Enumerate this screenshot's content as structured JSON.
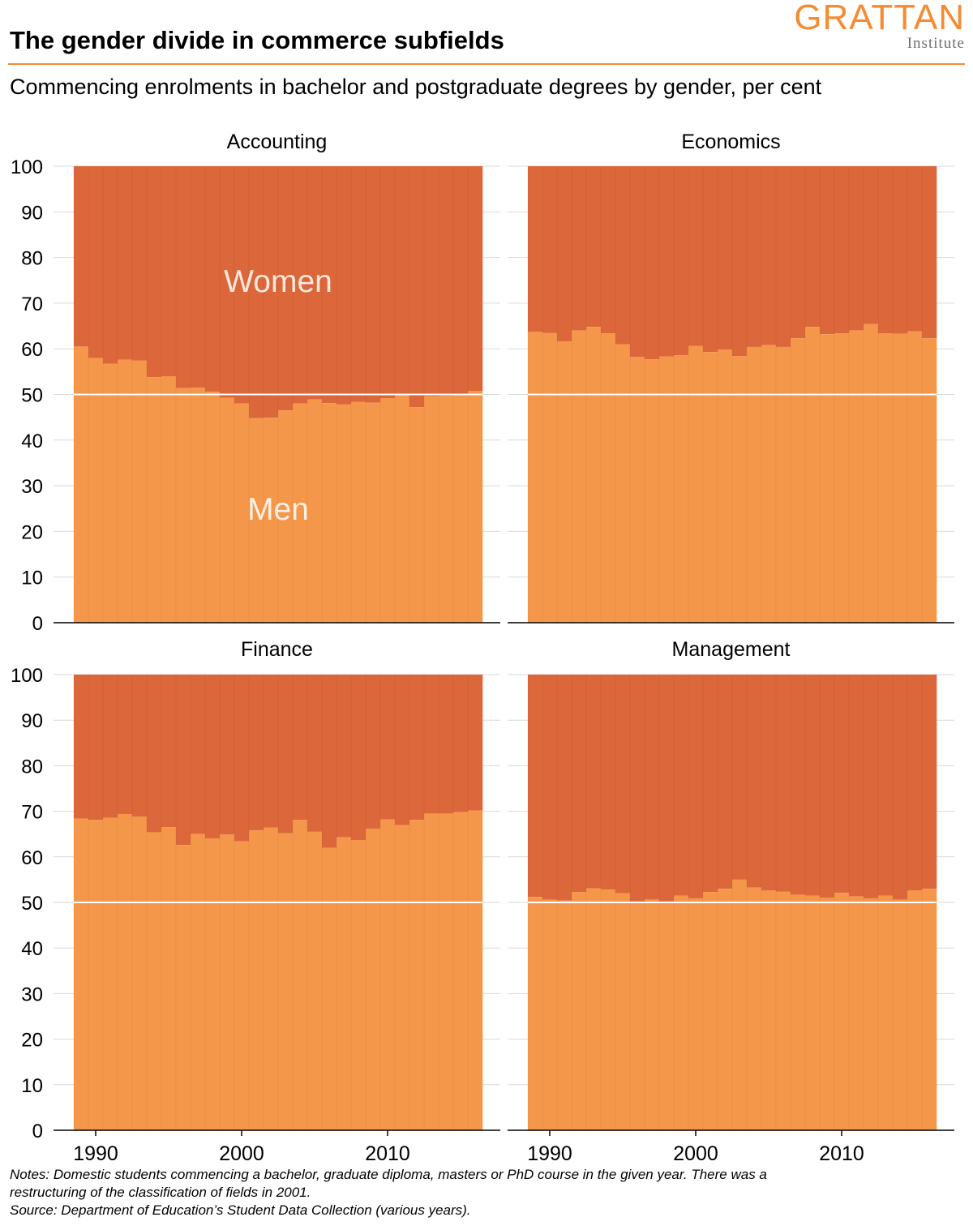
{
  "header": {
    "title": "The gender divide in commerce subfields",
    "subtitle": "Commencing enrolments in bachelor and postgraduate degrees by gender, per cent",
    "logo": {
      "word": "GRATTAN",
      "sub": "Institute"
    }
  },
  "colors": {
    "men": "#f5974a",
    "women": "#dc673a",
    "accent": "#f68b33",
    "reference_line": "#ffffff"
  },
  "notes": {
    "line1": "Notes: Domestic students commencing a bachelor, graduate diploma, masters or PhD course in the given year. There was a",
    "line2": "restructuring of the classification of fields in 2001.",
    "line3": "Source: Department of Education’s Student Data Collection (various years)."
  },
  "chart_data": [
    {
      "type": "bar",
      "stacked": true,
      "title": "Accounting",
      "x": [
        1989,
        1990,
        1991,
        1992,
        1993,
        1994,
        1995,
        1996,
        1997,
        1998,
        1999,
        2000,
        2001,
        2002,
        2003,
        2004,
        2005,
        2006,
        2007,
        2008,
        2009,
        2010,
        2011,
        2012,
        2013,
        2014,
        2015,
        2016
      ],
      "xticks": [
        "1990",
        "2000",
        "2010"
      ],
      "ylim": [
        0,
        100
      ],
      "yticks": [
        "0",
        "10",
        "20",
        "30",
        "40",
        "50",
        "60",
        "70",
        "80",
        "90",
        "100"
      ],
      "reference_line": 50,
      "series": [
        {
          "name": "Men",
          "values": [
            60.5,
            58.0,
            56.7,
            57.6,
            57.4,
            53.8,
            54.0,
            51.4,
            51.5,
            50.6,
            49.3,
            48.0,
            44.8,
            44.9,
            46.5,
            48.0,
            48.9,
            48.1,
            47.8,
            48.4,
            48.2,
            49.2,
            49.8,
            47.2,
            49.6,
            49.7,
            50.0,
            50.8
          ]
        },
        {
          "name": "Women",
          "values": [
            39.5,
            42.0,
            43.3,
            42.4,
            42.6,
            46.2,
            46.0,
            48.6,
            48.5,
            49.4,
            50.7,
            52.0,
            55.2,
            55.1,
            53.5,
            52.0,
            51.1,
            51.9,
            52.2,
            51.6,
            51.8,
            50.8,
            50.2,
            52.8,
            50.4,
            50.3,
            50.0,
            49.2
          ]
        }
      ],
      "annotations": [
        "Women",
        "Men"
      ]
    },
    {
      "type": "bar",
      "stacked": true,
      "title": "Economics",
      "x": [
        1989,
        1990,
        1991,
        1992,
        1993,
        1994,
        1995,
        1996,
        1997,
        1998,
        1999,
        2000,
        2001,
        2002,
        2003,
        2004,
        2005,
        2006,
        2007,
        2008,
        2009,
        2010,
        2011,
        2012,
        2013,
        2014,
        2015,
        2016
      ],
      "xticks": [
        "1990",
        "2000",
        "2010"
      ],
      "ylim": [
        0,
        100
      ],
      "reference_line": 50,
      "series": [
        {
          "name": "Men",
          "values": [
            63.7,
            63.5,
            61.6,
            64.0,
            64.8,
            63.4,
            61.0,
            58.2,
            57.7,
            58.3,
            58.6,
            60.6,
            59.3,
            59.8,
            58.4,
            60.4,
            60.8,
            60.4,
            62.3,
            64.8,
            63.2,
            63.4,
            64.0,
            65.4,
            63.4,
            63.3,
            63.8,
            62.3
          ]
        },
        {
          "name": "Women",
          "values": [
            36.3,
            36.5,
            38.4,
            36.0,
            35.2,
            36.6,
            39.0,
            41.8,
            42.3,
            41.7,
            41.4,
            39.4,
            40.7,
            40.2,
            41.6,
            39.6,
            39.2,
            39.6,
            37.7,
            35.2,
            36.8,
            36.6,
            36.0,
            34.6,
            36.6,
            36.7,
            36.2,
            37.7
          ]
        }
      ]
    },
    {
      "type": "bar",
      "stacked": true,
      "title": "Finance",
      "x": [
        1989,
        1990,
        1991,
        1992,
        1993,
        1994,
        1995,
        1996,
        1997,
        1998,
        1999,
        2000,
        2001,
        2002,
        2003,
        2004,
        2005,
        2006,
        2007,
        2008,
        2009,
        2010,
        2011,
        2012,
        2013,
        2014,
        2015,
        2016
      ],
      "xticks": [
        "1990",
        "2000",
        "2010"
      ],
      "ylim": [
        0,
        100
      ],
      "yticks": [
        "0",
        "10",
        "20",
        "30",
        "40",
        "50",
        "60",
        "70",
        "80",
        "90",
        "100"
      ],
      "reference_line": 50,
      "series": [
        {
          "name": "Men",
          "values": [
            68.4,
            68.1,
            68.6,
            69.4,
            68.8,
            65.4,
            66.5,
            62.6,
            65.0,
            64.0,
            64.9,
            63.4,
            65.8,
            66.4,
            65.2,
            68.1,
            65.5,
            62.0,
            64.3,
            63.7,
            66.2,
            68.2,
            67.0,
            68.1,
            69.5,
            69.5,
            69.8,
            70.2
          ]
        },
        {
          "name": "Women",
          "values": [
            31.6,
            31.9,
            31.4,
            30.6,
            31.2,
            34.6,
            33.5,
            37.4,
            35.0,
            36.0,
            35.1,
            36.6,
            34.2,
            33.6,
            34.8,
            31.9,
            34.5,
            38.0,
            35.7,
            36.3,
            33.8,
            31.8,
            33.0,
            31.9,
            30.5,
            30.5,
            30.2,
            29.8
          ]
        }
      ]
    },
    {
      "type": "bar",
      "stacked": true,
      "title": "Management",
      "x": [
        1989,
        1990,
        1991,
        1992,
        1993,
        1994,
        1995,
        1996,
        1997,
        1998,
        1999,
        2000,
        2001,
        2002,
        2003,
        2004,
        2005,
        2006,
        2007,
        2008,
        2009,
        2010,
        2011,
        2012,
        2013,
        2014,
        2015,
        2016
      ],
      "xticks": [
        "1990",
        "2000",
        "2010"
      ],
      "ylim": [
        0,
        100
      ],
      "reference_line": 50,
      "series": [
        {
          "name": "Men",
          "values": [
            51.2,
            50.6,
            50.4,
            52.3,
            53.1,
            52.8,
            52.0,
            50.2,
            50.6,
            50.2,
            51.5,
            50.9,
            52.3,
            53.0,
            55.0,
            53.3,
            52.6,
            52.4,
            51.7,
            51.5,
            51.0,
            52.1,
            51.3,
            50.9,
            51.5,
            50.6,
            52.6,
            53.0
          ]
        },
        {
          "name": "Women",
          "values": [
            48.8,
            49.4,
            49.6,
            47.7,
            46.9,
            47.2,
            48.0,
            49.8,
            49.4,
            49.8,
            48.5,
            49.1,
            47.7,
            47.0,
            45.0,
            46.7,
            47.4,
            47.6,
            48.3,
            48.5,
            49.0,
            47.9,
            48.7,
            49.1,
            48.5,
            49.4,
            47.4,
            47.0
          ]
        }
      ]
    }
  ]
}
